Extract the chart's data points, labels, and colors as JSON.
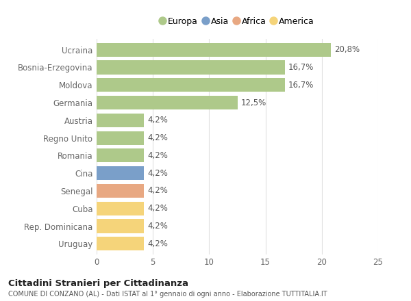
{
  "countries": [
    "Ucraina",
    "Bosnia-Erzegovina",
    "Moldova",
    "Germania",
    "Austria",
    "Regno Unito",
    "Romania",
    "Cina",
    "Senegal",
    "Cuba",
    "Rep. Dominicana",
    "Uruguay"
  ],
  "values": [
    20.8,
    16.7,
    16.7,
    12.5,
    4.2,
    4.2,
    4.2,
    4.2,
    4.2,
    4.2,
    4.2,
    4.2
  ],
  "labels": [
    "20,8%",
    "16,7%",
    "16,7%",
    "12,5%",
    "4,2%",
    "4,2%",
    "4,2%",
    "4,2%",
    "4,2%",
    "4,2%",
    "4,2%",
    "4,2%"
  ],
  "continents": [
    "Europa",
    "Europa",
    "Europa",
    "Europa",
    "Europa",
    "Europa",
    "Europa",
    "Asia",
    "Africa",
    "America",
    "America",
    "America"
  ],
  "colors": {
    "Europa": "#aec98a",
    "Asia": "#7a9fc9",
    "Africa": "#e8a882",
    "America": "#f5d47a"
  },
  "legend_order": [
    "Europa",
    "Asia",
    "Africa",
    "America"
  ],
  "xlim": [
    0,
    25
  ],
  "xticks": [
    0,
    5,
    10,
    15,
    20,
    25
  ],
  "title": "Cittadini Stranieri per Cittadinanza",
  "subtitle": "COMUNE DI CONZANO (AL) - Dati ISTAT al 1° gennaio di ogni anno - Elaborazione TUTTITALIA.IT",
  "background_color": "#ffffff",
  "bar_height": 0.78,
  "grid_color": "#e0e0e0",
  "label_fontsize": 8.5,
  "tick_fontsize": 8.5,
  "axis_label_color": "#666666",
  "bar_label_color": "#555555"
}
